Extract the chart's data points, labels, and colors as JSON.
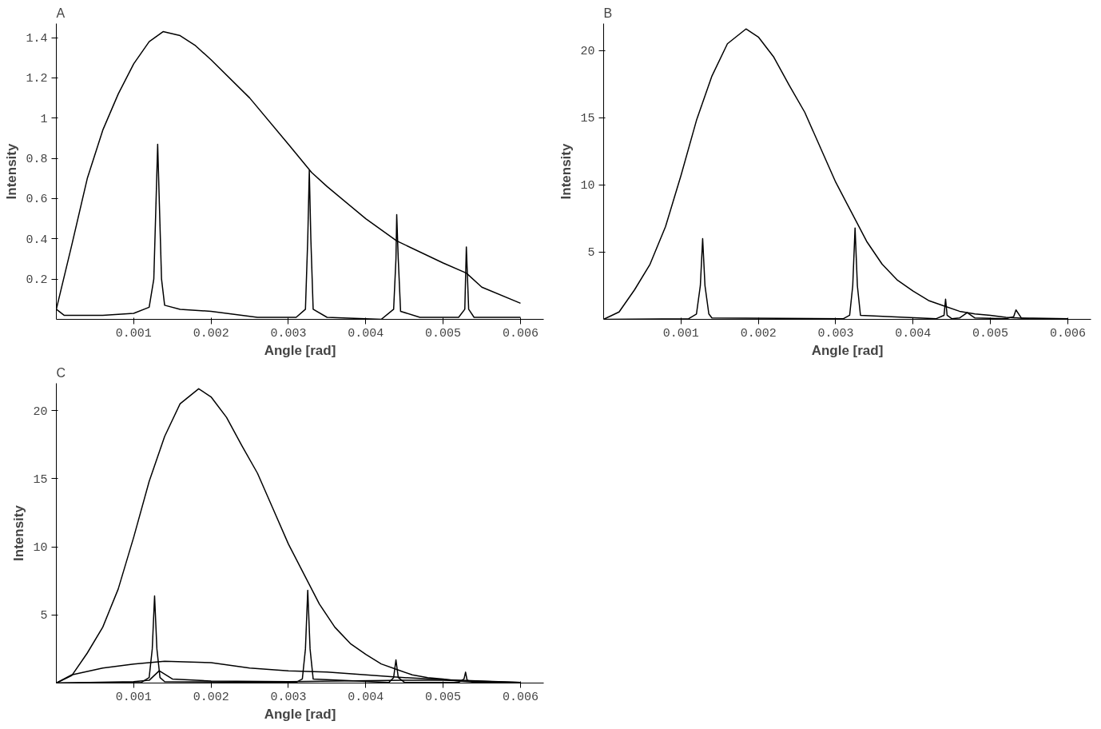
{
  "chart_data": [
    {
      "type": "line",
      "title": "A",
      "xlabel": "Angle [rad]",
      "ylabel": "Intensity",
      "xlim": [
        0,
        0.0063
      ],
      "ylim": [
        0,
        1.47
      ],
      "xticks": [
        0.001,
        0.002,
        0.003,
        0.004,
        0.005,
        0.006
      ],
      "yticks": [
        0.2,
        0.4,
        0.6,
        0.8,
        1,
        1.2,
        1.4
      ],
      "series": [
        {
          "color": "#000000",
          "x": [
            0,
            0.0002,
            0.0004,
            0.0006,
            0.0008,
            0.001,
            0.0012,
            0.00138,
            0.0016,
            0.0018,
            0.002,
            0.0025,
            0.003,
            0.0033,
            0.0035,
            0.004,
            0.0044,
            0.005,
            0.0053,
            0.0055,
            0.006
          ],
          "values": [
            0.05,
            0.37,
            0.7,
            0.94,
            1.12,
            1.27,
            1.38,
            1.43,
            1.41,
            1.36,
            1.29,
            1.1,
            0.87,
            0.73,
            0.66,
            0.5,
            0.39,
            0.28,
            0.23,
            0.16,
            0.08
          ]
        },
        {
          "color": "#000000",
          "x": [
            0,
            0.0001,
            0.0006,
            0.001,
            0.0012,
            0.00126,
            0.00129,
            0.00131,
            0.00133,
            0.00136,
            0.0014,
            0.0016,
            0.002,
            0.0026,
            0.0031,
            0.00322,
            0.00325,
            0.00327,
            0.00329,
            0.00332,
            0.0035,
            0.0042,
            0.00436,
            0.00439,
            0.0044,
            0.00442,
            0.00445,
            0.0047,
            0.0052,
            0.00528,
            0.0053,
            0.00533,
            0.0054,
            0.006
          ],
          "values": [
            0.05,
            0.02,
            0.02,
            0.03,
            0.06,
            0.2,
            0.6,
            0.87,
            0.6,
            0.2,
            0.07,
            0.05,
            0.04,
            0.01,
            0.01,
            0.05,
            0.4,
            0.74,
            0.4,
            0.05,
            0.01,
            0.0,
            0.05,
            0.3,
            0.52,
            0.3,
            0.04,
            0.01,
            0.01,
            0.05,
            0.36,
            0.05,
            0.01,
            0.01
          ]
        }
      ]
    },
    {
      "type": "line",
      "title": "B",
      "xlabel": "Angle [rad]",
      "ylabel": "Intensity",
      "xlim": [
        0,
        0.0063
      ],
      "ylim": [
        0,
        22
      ],
      "xticks": [
        0.001,
        0.002,
        0.003,
        0.004,
        0.005,
        0.006
      ],
      "yticks": [
        5,
        10,
        15,
        20
      ],
      "series": [
        {
          "color": "#000000",
          "x": [
            0,
            0.0002,
            0.0004,
            0.0006,
            0.0008,
            0.001,
            0.0012,
            0.0014,
            0.0016,
            0.00184,
            0.002,
            0.0022,
            0.0024,
            0.0026,
            0.0028,
            0.003,
            0.0032,
            0.0034,
            0.0036,
            0.0038,
            0.004,
            0.0042,
            0.0044,
            0.0046,
            0.0048,
            0.005,
            0.0052,
            0.0055,
            0.006
          ],
          "values": [
            0,
            0.55,
            2.2,
            4.1,
            6.9,
            10.7,
            14.8,
            18.1,
            20.5,
            21.6,
            21.0,
            19.5,
            17.4,
            15.4,
            12.8,
            10.2,
            8.0,
            5.8,
            4.1,
            2.9,
            2.1,
            1.4,
            1.0,
            0.6,
            0.4,
            0.3,
            0.15,
            0.05,
            0.02
          ]
        },
        {
          "color": "#000000",
          "x": [
            0,
            0.0011,
            0.0012,
            0.00125,
            0.00128,
            0.00131,
            0.00136,
            0.0014,
            0.0031,
            0.00318,
            0.00322,
            0.00325,
            0.00328,
            0.00332,
            0.0043,
            0.0044,
            0.00442,
            0.00444,
            0.0045,
            0.0046,
            0.0047,
            0.0048,
            0.0052,
            0.0053,
            0.00533,
            0.0054,
            0.006
          ],
          "values": [
            0,
            0.05,
            0.4,
            2.5,
            6.0,
            2.5,
            0.4,
            0.1,
            0.05,
            0.3,
            2.5,
            6.8,
            2.5,
            0.3,
            0.05,
            0.3,
            1.5,
            0.3,
            0.05,
            0.1,
            0.5,
            0.1,
            0.05,
            0.2,
            0.7,
            0.1,
            0.05
          ]
        }
      ]
    },
    {
      "type": "line",
      "title": "C",
      "xlabel": "Angle [rad]",
      "ylabel": "Intensity",
      "xlim": [
        0,
        0.0063
      ],
      "ylim": [
        0,
        22
      ],
      "xticks": [
        0.001,
        0.002,
        0.003,
        0.004,
        0.005,
        0.006
      ],
      "yticks": [
        5,
        10,
        15,
        20
      ],
      "series": [
        {
          "color": "#000000",
          "x": [
            0,
            0.0002,
            0.0004,
            0.0006,
            0.0008,
            0.001,
            0.0012,
            0.0014,
            0.0016,
            0.00184,
            0.002,
            0.0022,
            0.0024,
            0.0026,
            0.0028,
            0.003,
            0.0032,
            0.0034,
            0.0036,
            0.0038,
            0.004,
            0.0042,
            0.0044,
            0.0046,
            0.0048,
            0.005,
            0.0052,
            0.0055,
            0.006
          ],
          "values": [
            0,
            0.55,
            2.2,
            4.1,
            6.9,
            10.7,
            14.8,
            18.1,
            20.5,
            21.6,
            21.0,
            19.5,
            17.4,
            15.4,
            12.8,
            10.2,
            8.0,
            5.8,
            4.1,
            2.9,
            2.1,
            1.4,
            1.0,
            0.6,
            0.4,
            0.3,
            0.15,
            0.05,
            0.02
          ]
        },
        {
          "color": "#000000",
          "x": [
            0,
            0.0011,
            0.0012,
            0.00124,
            0.00127,
            0.0013,
            0.00134,
            0.0014,
            0.0031,
            0.00318,
            0.00322,
            0.00325,
            0.00328,
            0.00332,
            0.0043,
            0.00436,
            0.00439,
            0.00442,
            0.0045,
            0.0052,
            0.00527,
            0.00529,
            0.00531,
            0.0054,
            0.006
          ],
          "values": [
            0,
            0.05,
            0.4,
            2.5,
            6.4,
            2.5,
            0.4,
            0.1,
            0.05,
            0.3,
            2.5,
            6.8,
            2.5,
            0.3,
            0.05,
            0.4,
            1.7,
            0.4,
            0.05,
            0.05,
            0.3,
            0.8,
            0.2,
            0.05,
            0.02
          ]
        },
        {
          "color": "#000000",
          "x": [
            0,
            0.0002,
            0.0006,
            0.001,
            0.0014,
            0.002,
            0.0025,
            0.003,
            0.0035,
            0.004,
            0.0045,
            0.005,
            0.0055,
            0.006
          ],
          "values": [
            0,
            0.6,
            1.1,
            1.4,
            1.6,
            1.5,
            1.1,
            0.9,
            0.8,
            0.6,
            0.4,
            0.25,
            0.15,
            0.05
          ]
        },
        {
          "color": "#000000",
          "x": [
            0,
            0.001,
            0.0012,
            0.00133,
            0.0015,
            0.002,
            0.003,
            0.0045,
            0.005,
            0.006
          ],
          "values": [
            0,
            0.1,
            0.2,
            0.9,
            0.3,
            0.15,
            0.1,
            0.2,
            0.2,
            0.05
          ]
        }
      ]
    }
  ]
}
